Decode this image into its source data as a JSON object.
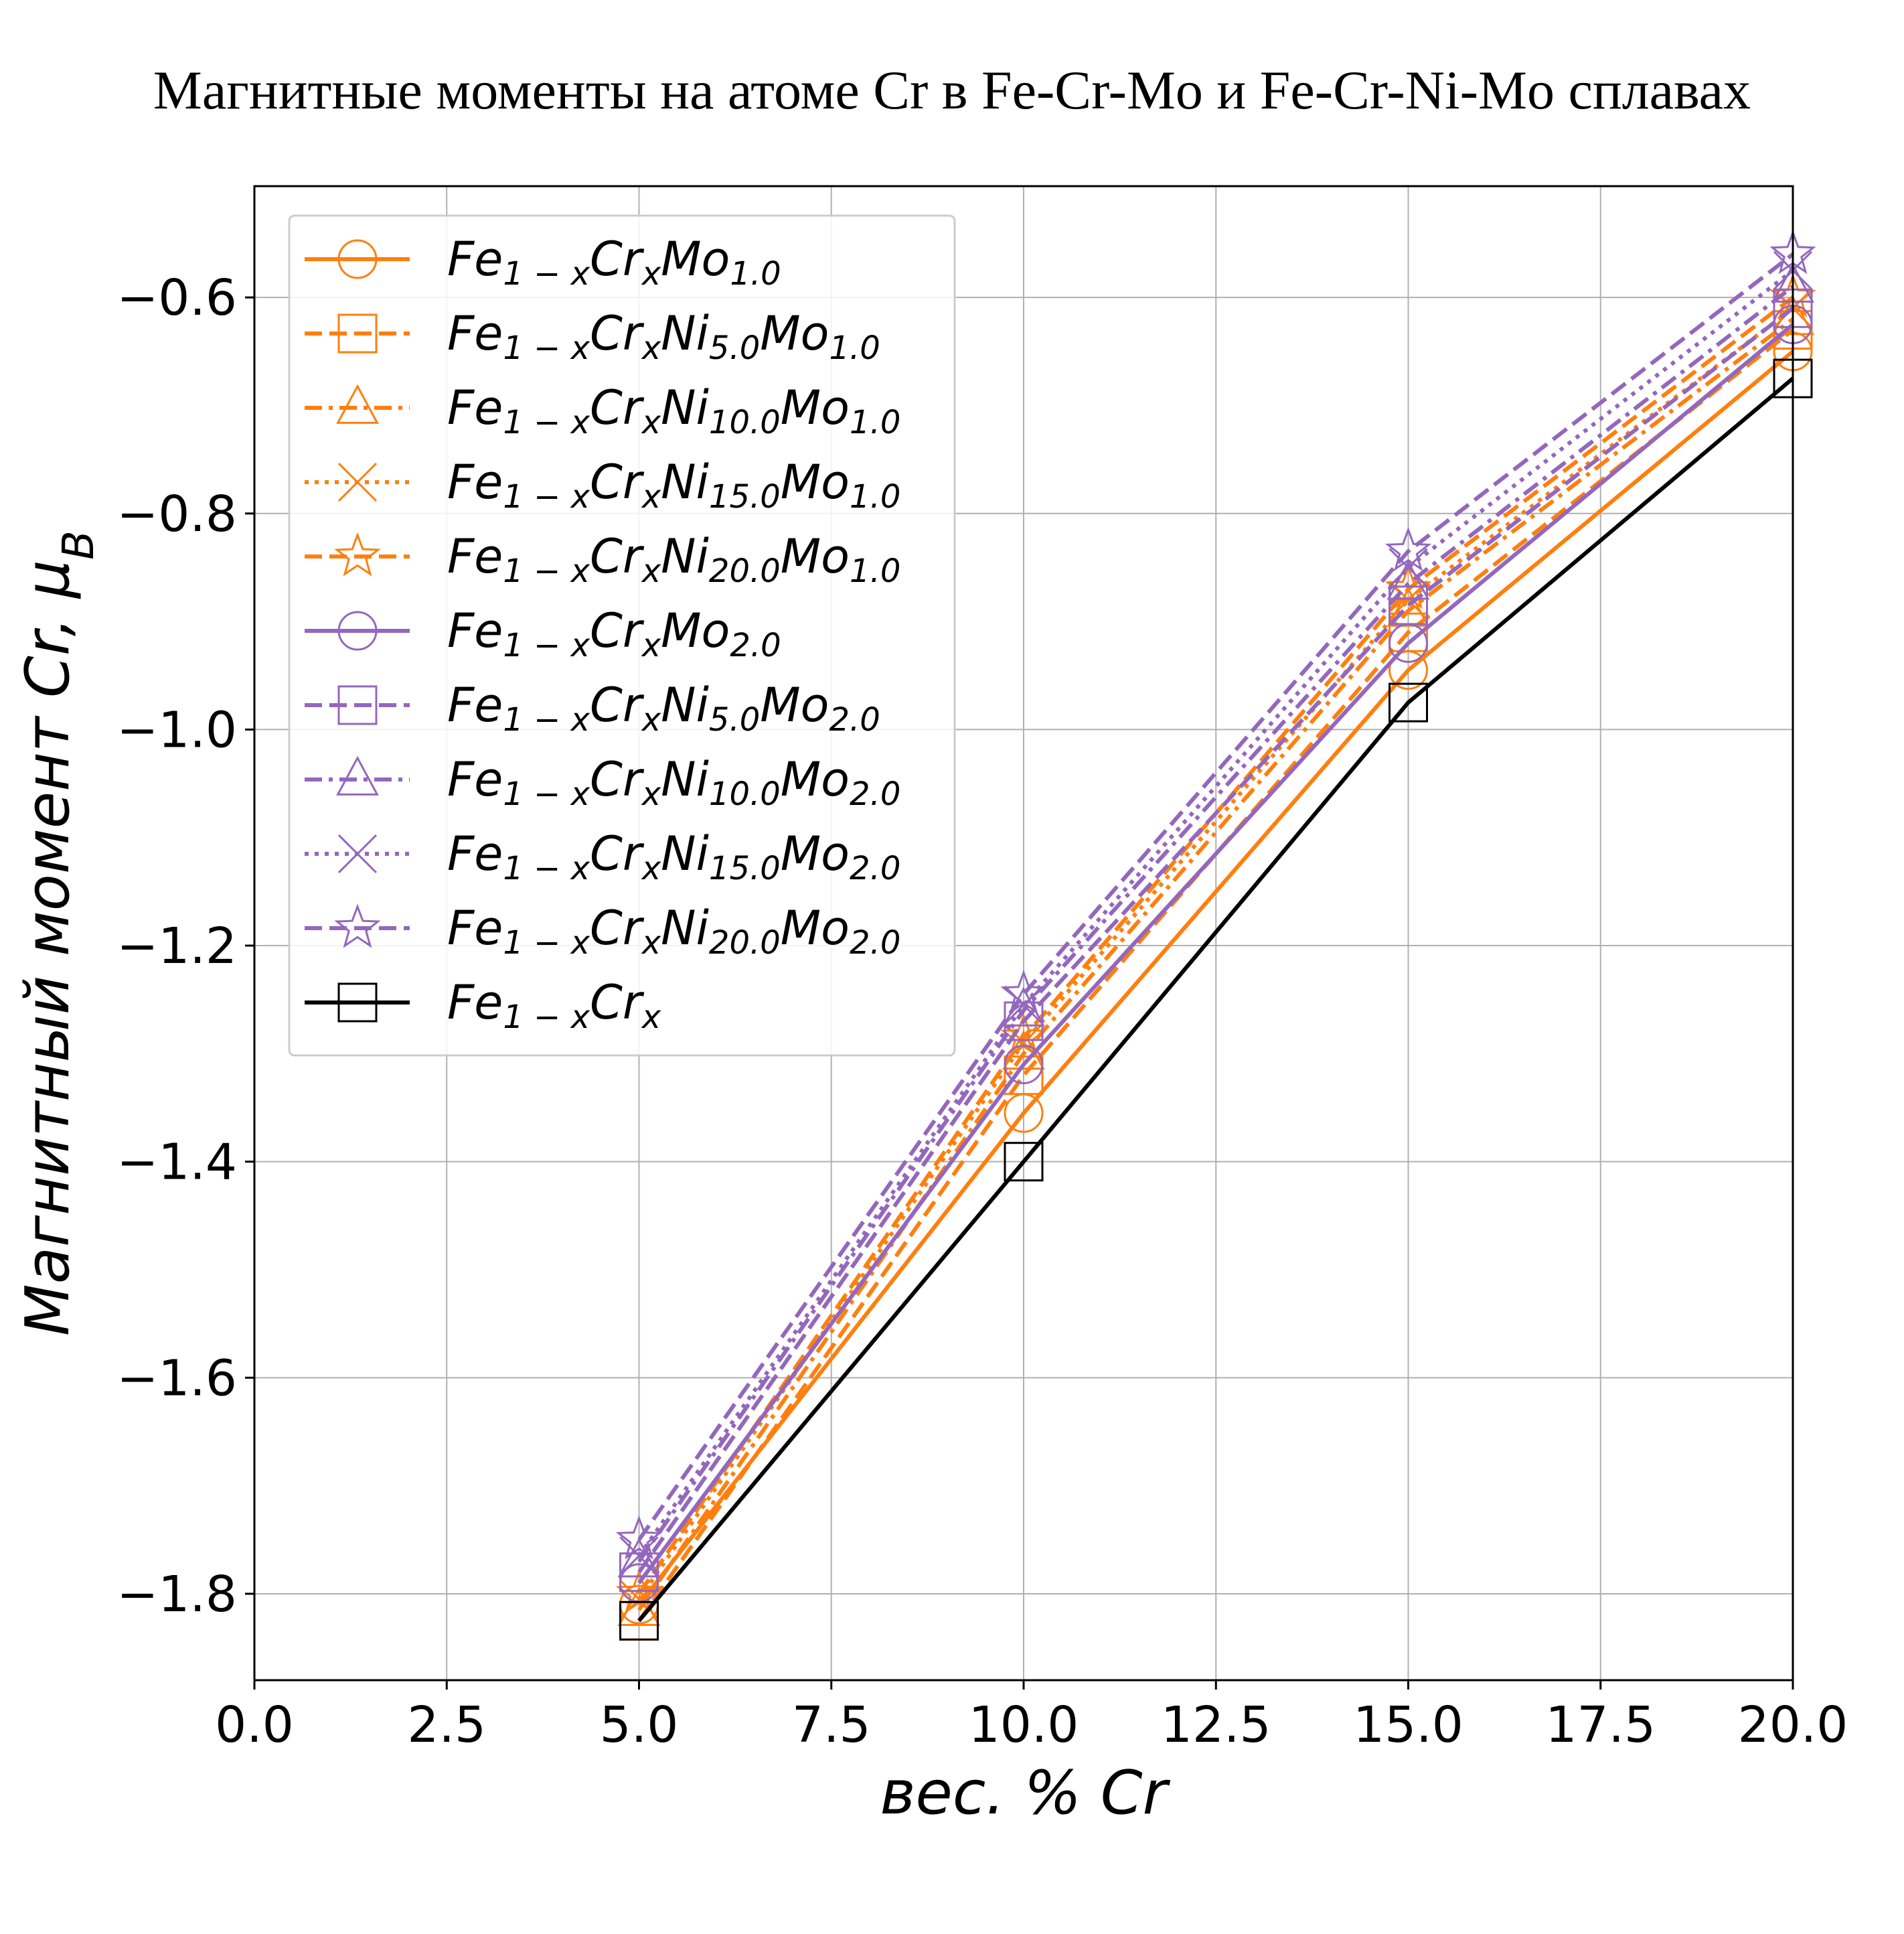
{
  "chart_data": {
    "type": "line",
    "title": "Магнитные моменты на атоме Cr в Fe-Cr-Mo и Fe-Cr-Ni-Mo сплавах",
    "xlabel": "вес.  % Cr",
    "ylabel": "Магнитный момент Cr,  μB",
    "xlim": [
      0.0,
      20.0
    ],
    "ylim": [
      -1.88,
      -0.497
    ],
    "xticks": [
      "0.0",
      "2.5",
      "5.0",
      "7.5",
      "10.0",
      "12.5",
      "15.0",
      "17.5",
      "20.0"
    ],
    "yticks": [
      "−1.8",
      "−1.6",
      "−1.4",
      "−1.2",
      "−1.0",
      "−0.8",
      "−0.6"
    ],
    "grid": true,
    "legend_position": "upper-left",
    "x": [
      5.0,
      10.0,
      15.0,
      20.0
    ],
    "series": [
      {
        "name": "Fe1−xCrxMo1.0",
        "label": {
          "base": "Fe",
          "s1": "1 − x",
          "m1": "Cr",
          "s2": "x",
          "m2": "Mo",
          "s3": "1.0"
        },
        "color": "#ff7f0e",
        "dash": "solid",
        "marker": "circle",
        "values": [
          -1.81,
          -1.355,
          -0.945,
          -0.65
        ]
      },
      {
        "name": "Fe1−xCrxNi5.0Mo1.0",
        "label": {
          "base": "Fe",
          "s1": "1 − x",
          "m1": "Cr",
          "s2": "x",
          "m2": "Ni",
          "s3": "5.0",
          "m3": "Mo",
          "s4": "1.0"
        },
        "color": "#ff7f0e",
        "dash": "dashed",
        "marker": "square",
        "values": [
          -1.825,
          -1.32,
          -0.91,
          -0.63
        ]
      },
      {
        "name": "Fe1−xCrxNi10.0Mo1.0",
        "label": {
          "base": "Fe",
          "s1": "1 − x",
          "m1": "Cr",
          "s2": "x",
          "m2": "Ni",
          "s3": "10.0",
          "m3": "Mo",
          "s4": "1.0"
        },
        "color": "#ff7f0e",
        "dash": "dashdot",
        "marker": "triangle",
        "values": [
          -1.815,
          -1.3,
          -0.89,
          -0.62
        ]
      },
      {
        "name": "Fe1−xCrxNi15.0Mo1.0",
        "label": {
          "base": "Fe",
          "s1": "1 − x",
          "m1": "Cr",
          "s2": "x",
          "m2": "Ni",
          "s3": "15.0",
          "m3": "Mo",
          "s4": "1.0"
        },
        "color": "#ff7f0e",
        "dash": "dotted",
        "marker": "x",
        "values": [
          -1.805,
          -1.29,
          -0.88,
          -0.61
        ]
      },
      {
        "name": "Fe1−xCrxNi20.0Mo1.0",
        "label": {
          "base": "Fe",
          "s1": "1 − x",
          "m1": "Cr",
          "s2": "x",
          "m2": "Ni",
          "s3": "20.0",
          "m3": "Mo",
          "s4": "1.0"
        },
        "color": "#ff7f0e",
        "dash": "dashed",
        "marker": "star",
        "values": [
          -1.8,
          -1.285,
          -0.87,
          -0.6
        ]
      },
      {
        "name": "Fe1−xCrxMo2.0",
        "label": {
          "base": "Fe",
          "s1": "1 − x",
          "m1": "Cr",
          "s2": "x",
          "m2": "Mo",
          "s3": "2.0"
        },
        "color": "#9467bd",
        "dash": "solid",
        "marker": "circle",
        "values": [
          -1.79,
          -1.31,
          -0.92,
          -0.625
        ]
      },
      {
        "name": "Fe1−xCrxNi5.0Mo2.0",
        "label": {
          "base": "Fe",
          "s1": "1 − x",
          "m1": "Cr",
          "s2": "x",
          "m2": "Ni",
          "s3": "5.0",
          "m3": "Mo",
          "s4": "2.0"
        },
        "color": "#9467bd",
        "dash": "dashed",
        "marker": "square",
        "values": [
          -1.78,
          -1.27,
          -0.885,
          -0.61
        ]
      },
      {
        "name": "Fe1−xCrxNi10.0Mo2.0",
        "label": {
          "base": "Fe",
          "s1": "1 − x",
          "m1": "Cr",
          "s2": "x",
          "m2": "Ni",
          "s3": "10.0",
          "m3": "Mo",
          "s4": "2.0"
        },
        "color": "#9467bd",
        "dash": "dashdot",
        "marker": "triangle",
        "values": [
          -1.77,
          -1.26,
          -0.865,
          -0.59
        ]
      },
      {
        "name": "Fe1−xCrxNi15.0Mo2.0",
        "label": {
          "base": "Fe",
          "s1": "1 − x",
          "m1": "Cr",
          "s2": "x",
          "m2": "Ni",
          "s3": "15.0",
          "m3": "Mo",
          "s4": "2.0"
        },
        "color": "#9467bd",
        "dash": "dotted",
        "marker": "x",
        "values": [
          -1.765,
          -1.255,
          -0.85,
          -0.575
        ]
      },
      {
        "name": "Fe1−xCrxNi20.0Mo2.0",
        "label": {
          "base": "Fe",
          "s1": "1 − x",
          "m1": "Cr",
          "s2": "x",
          "m2": "Ni",
          "s3": "20.0",
          "m3": "Mo",
          "s4": "2.0"
        },
        "color": "#9467bd",
        "dash": "dashed",
        "marker": "star",
        "values": [
          -1.75,
          -1.245,
          -0.835,
          -0.56
        ]
      },
      {
        "name": "Fe1−xCrx",
        "label": {
          "base": "Fe",
          "s1": "1 − x",
          "m1": "Cr",
          "s2": "x"
        },
        "color": "#000000",
        "dash": "solid",
        "marker": "square",
        "values": [
          -1.825,
          -1.4,
          -0.975,
          -0.675
        ]
      }
    ]
  }
}
